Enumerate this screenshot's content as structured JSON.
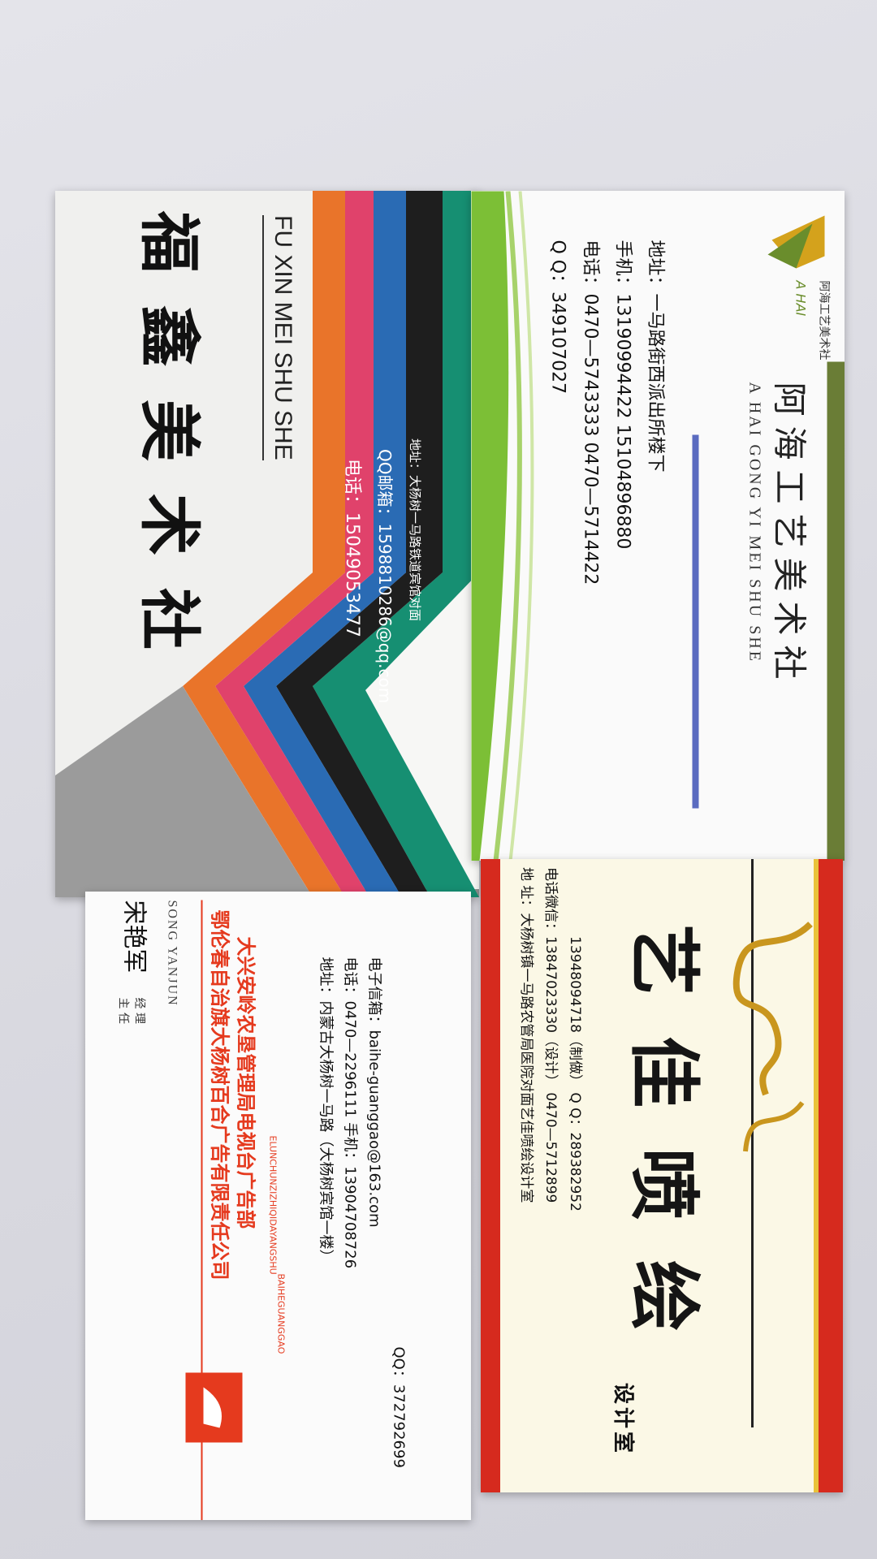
{
  "card_fuxin": {
    "title": "福鑫美术社",
    "pinyin": "FU XIN MEI SHU SHE",
    "phone": "电话：15049053477",
    "qq_mail": "QQ邮箱：1598810286@qq.com",
    "address": "地址：大杨树一马路铁道宾馆对面",
    "colors": [
      "#159a7c",
      "#2a6bb4",
      "#e0426b",
      "#e9742a",
      "#7c7c7c"
    ]
  },
  "card_ahai": {
    "company_small": "阿海工艺美术社",
    "logo_text": "A HAI",
    "title": "阿海工艺美术社",
    "pinyin": "A HAI GONG YI MEI SHU SHE",
    "address": "地址：一马路街西派出所楼下",
    "mobile": "手机：13190994422   15104896880",
    "tel": "电话：0470—5743333   0470—5714422",
    "qq": "Q Q：349107027",
    "accent": "#7cbf36"
  },
  "card_song": {
    "name": "宋艳军",
    "role_1": "经 理",
    "role_2": "主 任",
    "name_pinyin": "SONG YANJUN",
    "company": "鄂伦春自治旗大杨树百合广告有限责任公司",
    "department": "大兴安岭农垦管理局电视台广告部",
    "company_pinyin": "ELUNCHUNZIZHIQIDAYANGSHU",
    "brand_pinyin": "BAIHEGUANGGAO",
    "address": "地址：内蒙古大杨树一马路（大杨树宾馆一楼）",
    "phone": "电话：0470—2296111   手机：13904708726",
    "email": "电子信箱：baihe-guanggao@163.com",
    "qq": "QQ：372792699",
    "accent": "#e53a1e"
  },
  "card_yijia": {
    "title": "艺佳喷绘",
    "subtitle": "设计室",
    "address": "地      址：大杨树镇一马路农管局医院对面艺佳喷绘设计室",
    "phone": "电话微信：13847023330（设计）   0470—5712899",
    "phone2": "13948094718（制做）   Q Q：289382952",
    "accent": "#d62a1e",
    "gold": "#c9961e"
  }
}
